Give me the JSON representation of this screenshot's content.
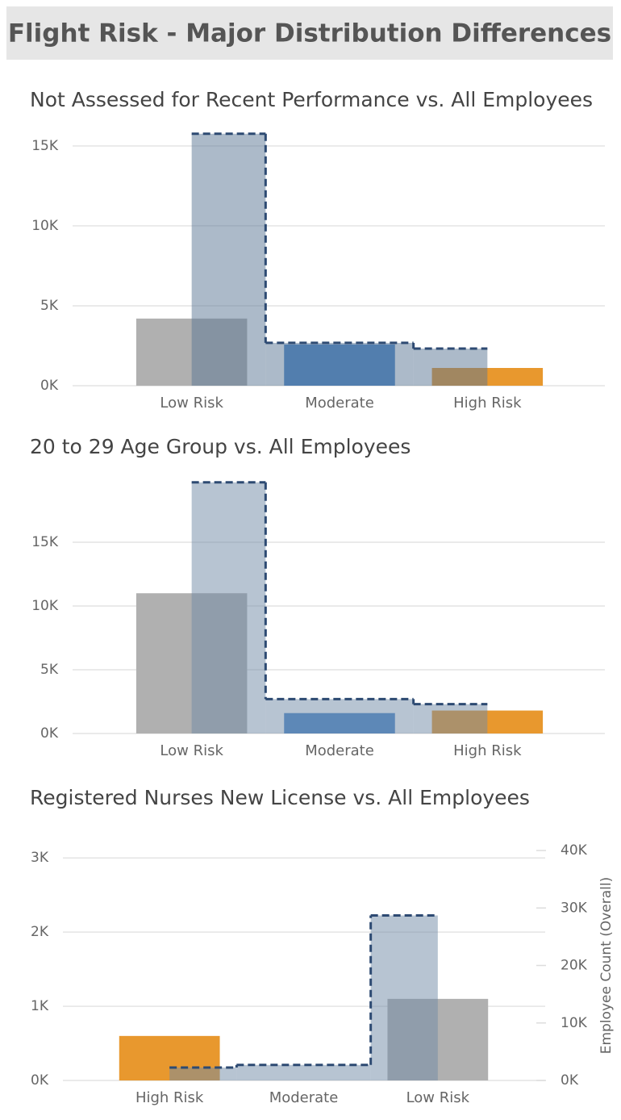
{
  "header": {
    "title": "Flight Risk - Major Distribution Differences"
  },
  "chart_data": [
    {
      "type": "bar_step",
      "title": "Not Assessed for Recent Performance vs. All Employees",
      "categories": [
        "Low Risk",
        "Moderate",
        "High Risk"
      ],
      "series": [
        {
          "color": [
            "#b0b0b0",
            "#4a86c8",
            "#e8982e"
          ],
          "values": [
            4200,
            2580,
            1110
          ]
        },
        {
          "color": "#5a7694",
          "values": [
            15760,
            2680,
            2320
          ]
        }
      ],
      "ylim": [
        0,
        16000
      ],
      "yticks": [
        {
          "value": 0,
          "label": "0K"
        },
        {
          "value": 5000,
          "label": "5K"
        },
        {
          "value": 10000,
          "label": "10K"
        },
        {
          "value": 15000,
          "label": "15K"
        }
      ],
      "grid": true
    },
    {
      "type": "bar_step",
      "title": "20 to 29 Age Group vs. All Employees",
      "categories": [
        "Low Risk",
        "Moderate",
        "High Risk"
      ],
      "series": [
        {
          "color": [
            "#b0b0b0",
            "#4a86c8",
            "#e8982e"
          ],
          "values": [
            11000,
            1600,
            1800
          ]
        },
        {
          "color": "#6f8aa6",
          "values": [
            19700,
            2700,
            2300
          ]
        }
      ],
      "ylim": [
        0,
        20000
      ],
      "yticks": [
        {
          "value": 0,
          "label": "0K"
        },
        {
          "value": 5000,
          "label": "5K"
        },
        {
          "value": 10000,
          "label": "10K"
        },
        {
          "value": 15000,
          "label": "15K"
        }
      ],
      "grid": true
    },
    {
      "type": "bar_step",
      "title": "Registered Nurses New License vs. All Employees",
      "categories": [
        "High Risk",
        "Moderate",
        "Low Risk"
      ],
      "series": [
        {
          "color": [
            "#e8982e",
            "#4a86c8",
            "#b0b0b0"
          ],
          "values": [
            600,
            0,
            1100
          ]
        },
        {
          "color": "#6f8aa6",
          "values": [
            2250,
            2700,
            28700
          ],
          "axis": "y2"
        }
      ],
      "ylim": [
        0,
        3100
      ],
      "yticks": [
        {
          "value": 0,
          "label": "0K"
        },
        {
          "value": 1000,
          "label": "1K"
        },
        {
          "value": 2000,
          "label": "2K"
        },
        {
          "value": 3000,
          "label": "3K"
        }
      ],
      "y2lim": [
        0,
        40000
      ],
      "y2ticks": [
        {
          "value": 0,
          "label": "0K"
        },
        {
          "value": 10000,
          "label": "10K"
        },
        {
          "value": 20000,
          "label": "20K"
        },
        {
          "value": 30000,
          "label": "30K"
        },
        {
          "value": 40000,
          "label": "40K"
        }
      ],
      "y2label": "Employee Count (Overall)",
      "grid": true
    }
  ]
}
